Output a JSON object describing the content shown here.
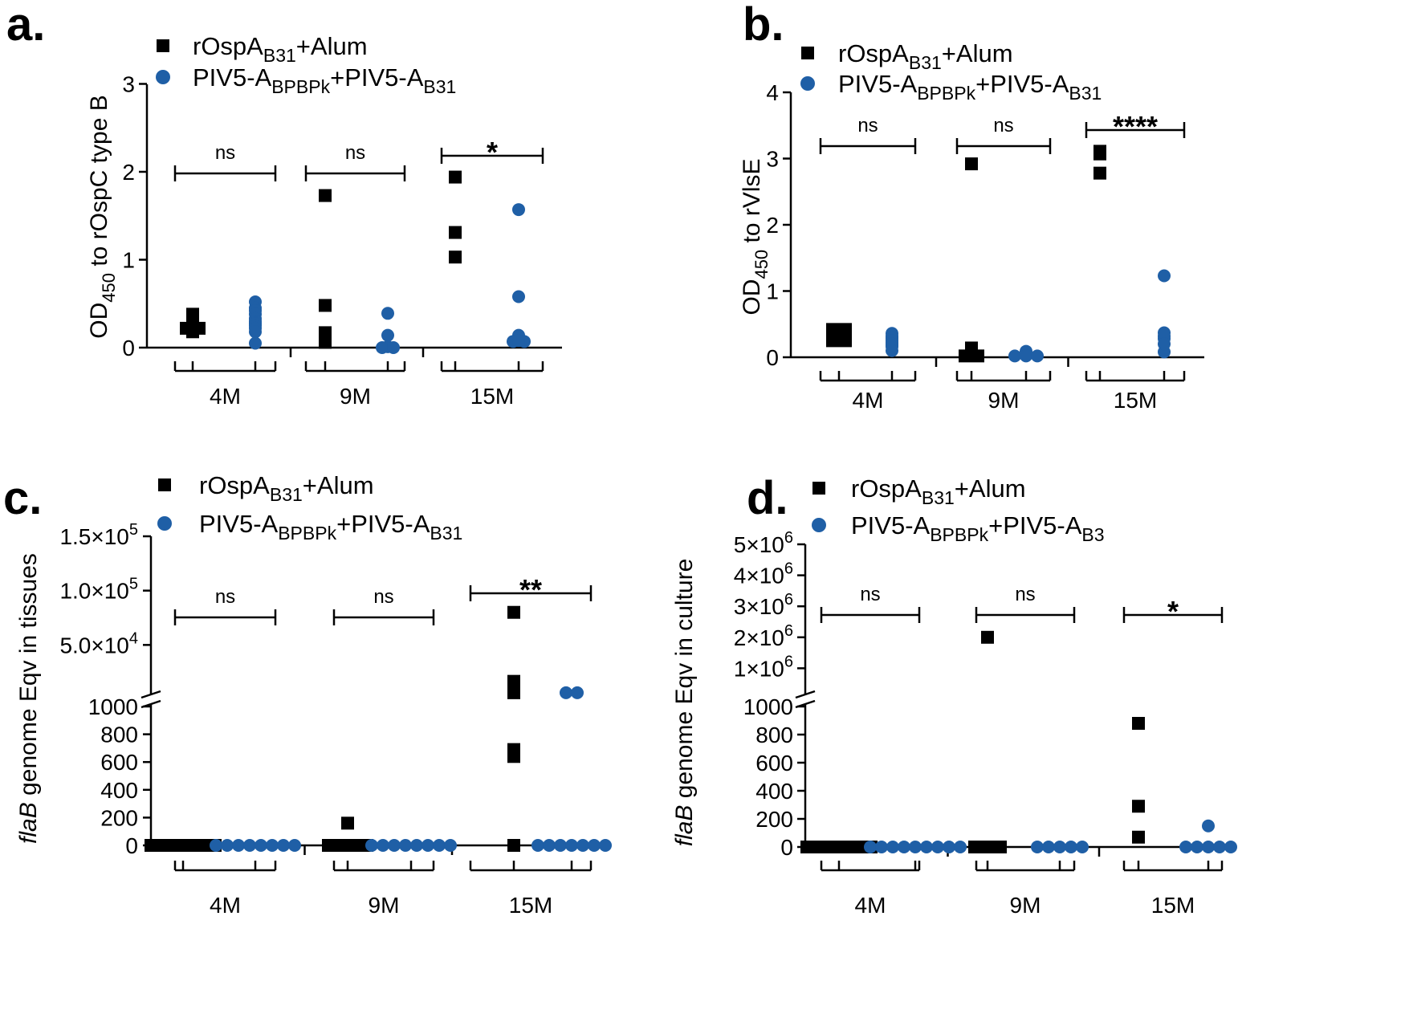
{
  "colors": {
    "rospa": "#000000",
    "piv5": "#1f5fa6"
  },
  "chart_data": [
    {
      "panel": "a.",
      "type": "scatter",
      "ylabel": "OD450 to rOspC type B",
      "ylabel_parts": {
        "pre": "OD",
        "sub": "450",
        "post": " to rOspC type B"
      },
      "ylim": [
        0,
        3
      ],
      "yticks": [
        0,
        1,
        2,
        3
      ],
      "ytick_labels": [
        "0",
        "1",
        "2",
        "3"
      ],
      "legend": {
        "position": "top-left",
        "entries": [
          {
            "series": "rOspA+Alum",
            "pre": "rOspA",
            "sub": "B31",
            "post": "+Alum",
            "sub2": "",
            "marker": "square"
          },
          {
            "series": "PIV5",
            "pre": "PIV5-A",
            "sub": "BPBPk",
            "post": "+PIV5-A",
            "sub2": "B31",
            "marker": "circle"
          }
        ]
      },
      "groups": [
        {
          "label": "4M",
          "sig": "ns",
          "rospa": [
            0.3,
            0.32,
            0.18,
            0.22,
            0.24,
            0.38,
            0.22
          ],
          "piv5": [
            0.52,
            0.45,
            0.42,
            0.38,
            0.33,
            0.3,
            0.28,
            0.27,
            0.25,
            0.22,
            0.18,
            0.05
          ]
        },
        {
          "label": "9M",
          "sig": "ns",
          "rospa": [
            0.06,
            1.73,
            0.48,
            0.17
          ],
          "piv5": [
            0.39,
            0.14,
            0.01,
            0.0,
            0.0
          ]
        },
        {
          "label": "15M",
          "sig": "*",
          "rospa": [
            1.94,
            1.31,
            1.03
          ],
          "piv5": [
            1.57,
            0.58,
            0.14,
            0.07,
            0.07,
            0.08
          ]
        }
      ]
    },
    {
      "panel": "b.",
      "type": "scatter",
      "ylabel": "OD450 to rVlsE",
      "ylabel_parts": {
        "pre": "OD",
        "sub": "450",
        "post": " to rVlsE"
      },
      "ylim": [
        0,
        4
      ],
      "yticks": [
        0,
        1,
        2,
        3,
        4
      ],
      "ytick_labels": [
        "0",
        "1",
        "2",
        "3",
        "4"
      ],
      "legend": {
        "position": "top-left",
        "entries": [
          {
            "series": "rOspA+Alum",
            "pre": "rOspA",
            "sub": "B31",
            "post": "+Alum",
            "sub2": "",
            "marker": "square"
          },
          {
            "series": "PIV5",
            "pre": "PIV5-A",
            "sub": "BPBPk",
            "post": "+PIV5-A",
            "sub2": "B31",
            "marker": "circle"
          }
        ]
      },
      "groups": [
        {
          "label": "4M",
          "sig": "ns",
          "rospa": [
            0.42,
            0.25,
            0.37,
            0.42,
            0.25
          ],
          "piv5": [
            0.36,
            0.32,
            0.3,
            0.28,
            0.25,
            0.22,
            0.2,
            0.18,
            0.16,
            0.1
          ]
        },
        {
          "label": "9M",
          "sig": "ns",
          "rospa": [
            0.02,
            2.92,
            0.14,
            0.02
          ],
          "piv5": [
            0.09,
            0.05,
            0.02,
            0.02,
            0.02
          ]
        },
        {
          "label": "15M",
          "sig": "****",
          "rospa": [
            3.11,
            2.78,
            3.07
          ],
          "piv5": [
            1.23,
            0.32,
            0.28,
            0.37,
            0.08,
            0.2
          ]
        }
      ]
    },
    {
      "panel": "c.",
      "type": "scatter",
      "ylabel": "flaB genome Eqv in tissues",
      "ylabel_parts": {
        "pre": "flaB",
        "sub": "",
        "post": " genome Eqv in tissues"
      },
      "yaxis_segmented": true,
      "ylim_lower": [
        0,
        1000
      ],
      "ylim_upper": [
        0,
        150000
      ],
      "yticks": [
        0,
        200,
        400,
        600,
        800,
        1000,
        50000,
        100000,
        150000
      ],
      "ytick_labels": [
        "0",
        "200",
        "400",
        "600",
        "800",
        "1000",
        "5.0×10^4",
        "1.0×10^5",
        "1.5×10^5"
      ],
      "legend": {
        "position": "top-left",
        "entries": [
          {
            "series": "rOspA+Alum",
            "pre": "rOspA",
            "sub": "B31",
            "post": "+Alum",
            "sub2": "",
            "marker": "square"
          },
          {
            "series": "PIV5",
            "pre": "PIV5-A",
            "sub": "BPBPk",
            "post": "+PIV5-A",
            "sub2": "B31",
            "marker": "circle"
          }
        ]
      },
      "groups": [
        {
          "label": "4M",
          "sig": "ns",
          "rospa": [
            0,
            0,
            0,
            0,
            0,
            0
          ],
          "piv5": [
            0,
            0,
            0,
            0,
            0,
            0,
            0,
            0
          ]
        },
        {
          "label": "9M",
          "sig": "ns",
          "rospa": [
            160,
            0,
            0,
            0,
            0
          ],
          "piv5": [
            0,
            0,
            0,
            0,
            0,
            0,
            0,
            0
          ]
        },
        {
          "label": "15M",
          "sig": "**",
          "rospa": [
            80000,
            16500,
            6000,
            690,
            640,
            0
          ],
          "piv5": [
            6000,
            6000,
            0,
            0,
            0,
            0,
            0,
            0,
            0
          ]
        }
      ]
    },
    {
      "panel": "d.",
      "type": "scatter",
      "ylabel": "flaB genome Eqv in culture",
      "ylabel_parts": {
        "pre": "flaB",
        "sub": "",
        "post": " genome Eqv in culture"
      },
      "yaxis_segmented": true,
      "ylim_lower": [
        0,
        1000
      ],
      "ylim_upper": [
        0,
        5000000
      ],
      "yticks": [
        0,
        200,
        400,
        600,
        800,
        1000,
        1000000,
        2000000,
        3000000,
        4000000,
        5000000
      ],
      "ytick_labels": [
        "0",
        "200",
        "400",
        "600",
        "800",
        "1000",
        "1×10^6",
        "2×10^6",
        "3×10^6",
        "4×10^6",
        "5×10^6"
      ],
      "legend": {
        "position": "top-left",
        "entries": [
          {
            "series": "rOspA+Alum",
            "pre": "rOspA",
            "sub": "B31",
            "post": "+Alum",
            "sub2": "",
            "marker": "square"
          },
          {
            "series": "PIV5",
            "pre": "PIV5-A",
            "sub": "BPBPk",
            "post": "+PIV5-A",
            "sub2": "B3",
            "marker": "circle"
          }
        ]
      },
      "groups": [
        {
          "label": "4M",
          "sig": "ns",
          "rospa": [
            0,
            0,
            0,
            0,
            0,
            0
          ],
          "piv5": [
            0,
            0,
            0,
            0,
            0,
            0,
            0,
            0,
            0
          ]
        },
        {
          "label": "9M",
          "sig": "ns",
          "rospa": [
            2000000,
            0,
            0,
            0
          ],
          "piv5": [
            0,
            0,
            0,
            0,
            0
          ]
        },
        {
          "label": "15M",
          "sig": "*",
          "rospa": [
            880,
            290,
            70
          ],
          "piv5": [
            150,
            0,
            0,
            0,
            0,
            0
          ]
        }
      ]
    }
  ]
}
